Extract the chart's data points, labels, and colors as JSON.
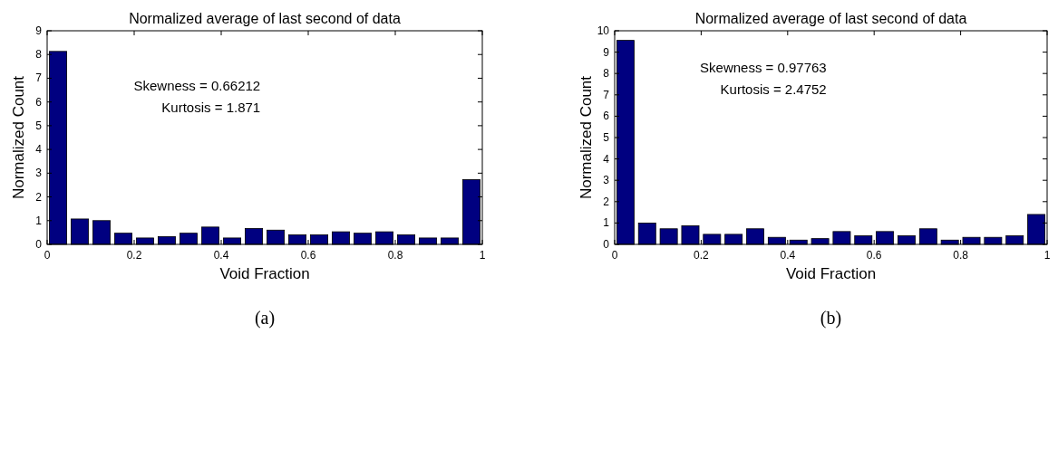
{
  "chart_data": [
    {
      "type": "histogram",
      "title": "Normalized average of last second of data",
      "xlabel": "Void Fraction",
      "ylabel": "Normalized Count",
      "color": "#000080",
      "bins": [
        0,
        0.05,
        0.1,
        0.15,
        0.2,
        0.25,
        0.3,
        0.35,
        0.4,
        0.45,
        0.5,
        0.55,
        0.6,
        0.65,
        0.7,
        0.75,
        0.8,
        0.85,
        0.9,
        0.95,
        1
      ],
      "values": [
        8.13,
        1.07,
        1.0,
        0.47,
        0.27,
        0.33,
        0.47,
        0.73,
        0.27,
        0.67,
        0.6,
        0.4,
        0.4,
        0.53,
        0.47,
        0.53,
        0.4,
        0.27,
        0.27,
        2.73
      ],
      "xlim": [
        0,
        1
      ],
      "xticks": [
        0,
        0.2,
        0.4,
        0.6,
        0.8,
        1
      ],
      "ylim": [
        0,
        9
      ],
      "yticks": [
        0,
        1,
        2,
        3,
        4,
        5,
        6,
        7,
        8,
        9
      ],
      "grid": false,
      "annotations": [
        "Skewness = 0.66212",
        "Kurtosis = 1.871",
        "(a)"
      ]
    },
    {
      "type": "histogram",
      "title": "Normalized average of last second of data",
      "xlabel": "Void Fraction",
      "ylabel": "Normalized Count",
      "color": "#000080",
      "bins": [
        0,
        0.05,
        0.1,
        0.15,
        0.2,
        0.25,
        0.3,
        0.35,
        0.4,
        0.45,
        0.5,
        0.55,
        0.6,
        0.65,
        0.7,
        0.75,
        0.8,
        0.85,
        0.9,
        0.95,
        1
      ],
      "values": [
        9.55,
        1.0,
        0.73,
        0.87,
        0.47,
        0.47,
        0.73,
        0.33,
        0.2,
        0.27,
        0.6,
        0.4,
        0.6,
        0.4,
        0.73,
        0.2,
        0.33,
        0.33,
        0.4,
        1.4
      ],
      "xlim": [
        0,
        1
      ],
      "xticks": [
        0,
        0.2,
        0.4,
        0.6,
        0.8,
        1
      ],
      "ylim": [
        0,
        10
      ],
      "yticks": [
        0,
        1,
        2,
        3,
        4,
        5,
        6,
        7,
        8,
        9,
        10
      ],
      "grid": false,
      "annotations": [
        "Skewness = 0.97763",
        "Kurtosis = 2.4752",
        "(b)"
      ]
    }
  ]
}
